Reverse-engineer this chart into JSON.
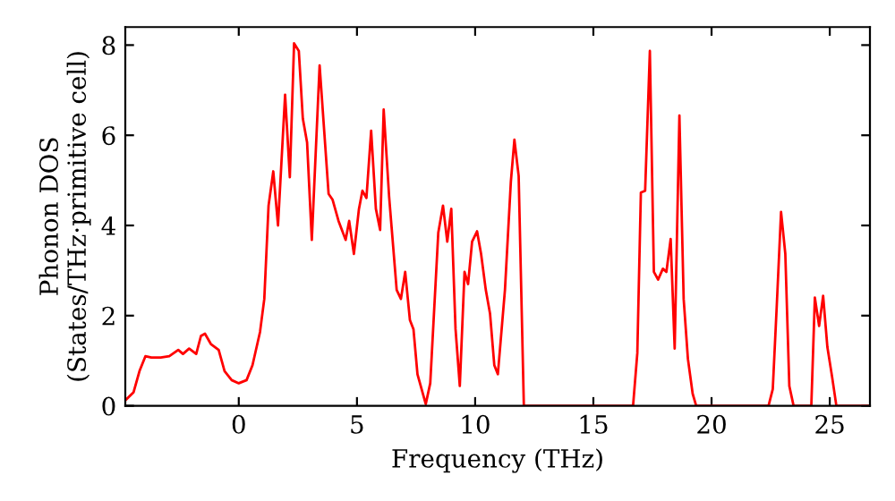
{
  "chart_data": {
    "type": "line",
    "xlabel": "Frequency (THz)",
    "ylabel": "Phonon DOS\n(States/THz·primitive cell)",
    "xlim": [
      -4.8,
      26.7
    ],
    "ylim": [
      0,
      8.4
    ],
    "xticks": [
      0,
      5,
      10,
      15,
      20,
      25
    ],
    "yticks": [
      0,
      2,
      4,
      6,
      8
    ],
    "grid": false,
    "legend": false,
    "marker": "none",
    "line_style": "solid",
    "series": [
      {
        "color": "#ff0000",
        "x": [
          -4.78,
          -4.45,
          -4.2,
          -3.95,
          -3.7,
          -3.3,
          -2.94,
          -2.56,
          -2.36,
          -2.1,
          -1.8,
          -1.6,
          -1.43,
          -1.18,
          -0.85,
          -0.6,
          -0.3,
          0,
          0.33,
          0.58,
          0.9,
          1.08,
          1.26,
          1.46,
          1.66,
          1.96,
          2.16,
          2.34,
          2.54,
          2.71,
          2.89,
          3.09,
          3.42,
          3.8,
          3.97,
          4.22,
          4.52,
          4.67,
          4.87,
          5.08,
          5.23,
          5.4,
          5.6,
          5.8,
          5.98,
          6.13,
          6.36,
          6.68,
          6.86,
          7.04,
          7.24,
          7.39,
          7.56,
          7.91,
          8.1,
          8.44,
          8.64,
          8.82,
          8.99,
          9.17,
          9.35,
          9.55,
          9.7,
          9.87,
          10.08,
          10.25,
          10.45,
          10.63,
          10.81,
          10.96,
          11.26,
          11.51,
          11.66,
          11.84,
          12.06,
          16.68,
          16.86,
          17.01,
          17.19,
          17.39,
          17.56,
          17.74,
          17.94,
          18.09,
          18.27,
          18.44,
          18.64,
          18.82,
          19.0,
          19.2,
          19.35,
          22.41,
          22.59,
          22.76,
          22.94,
          23.12,
          23.29,
          23.47,
          24.22,
          24.37,
          24.55,
          24.72,
          24.9,
          25.1,
          25.28,
          26.7
        ],
        "values": [
          0.13,
          0.3,
          0.77,
          1.1,
          1.07,
          1.07,
          1.1,
          1.24,
          1.15,
          1.27,
          1.15,
          1.55,
          1.6,
          1.37,
          1.24,
          0.77,
          0.57,
          0.5,
          0.57,
          0.9,
          1.64,
          2.37,
          4.44,
          5.2,
          4.0,
          6.9,
          5.07,
          8.04,
          7.87,
          6.37,
          5.84,
          3.68,
          7.55,
          4.7,
          4.57,
          4.1,
          3.68,
          4.1,
          3.37,
          4.35,
          4.77,
          4.61,
          6.1,
          4.37,
          3.9,
          6.57,
          4.64,
          2.57,
          2.37,
          2.97,
          1.9,
          1.7,
          0.7,
          0.04,
          0.5,
          3.84,
          4.44,
          3.64,
          4.37,
          1.7,
          0.44,
          2.97,
          2.7,
          3.64,
          3.87,
          3.37,
          2.57,
          2.04,
          0.9,
          0.7,
          2.57,
          4.97,
          5.9,
          5.1,
          0,
          0,
          1.17,
          4.73,
          4.77,
          7.87,
          2.97,
          2.8,
          3.04,
          2.97,
          3.7,
          1.27,
          6.44,
          2.37,
          1.04,
          0.27,
          0,
          0,
          0.37,
          2.24,
          4.3,
          3.37,
          0.44,
          0,
          0,
          2.4,
          1.77,
          2.44,
          1.3,
          0.64,
          0,
          0
        ]
      }
    ]
  }
}
